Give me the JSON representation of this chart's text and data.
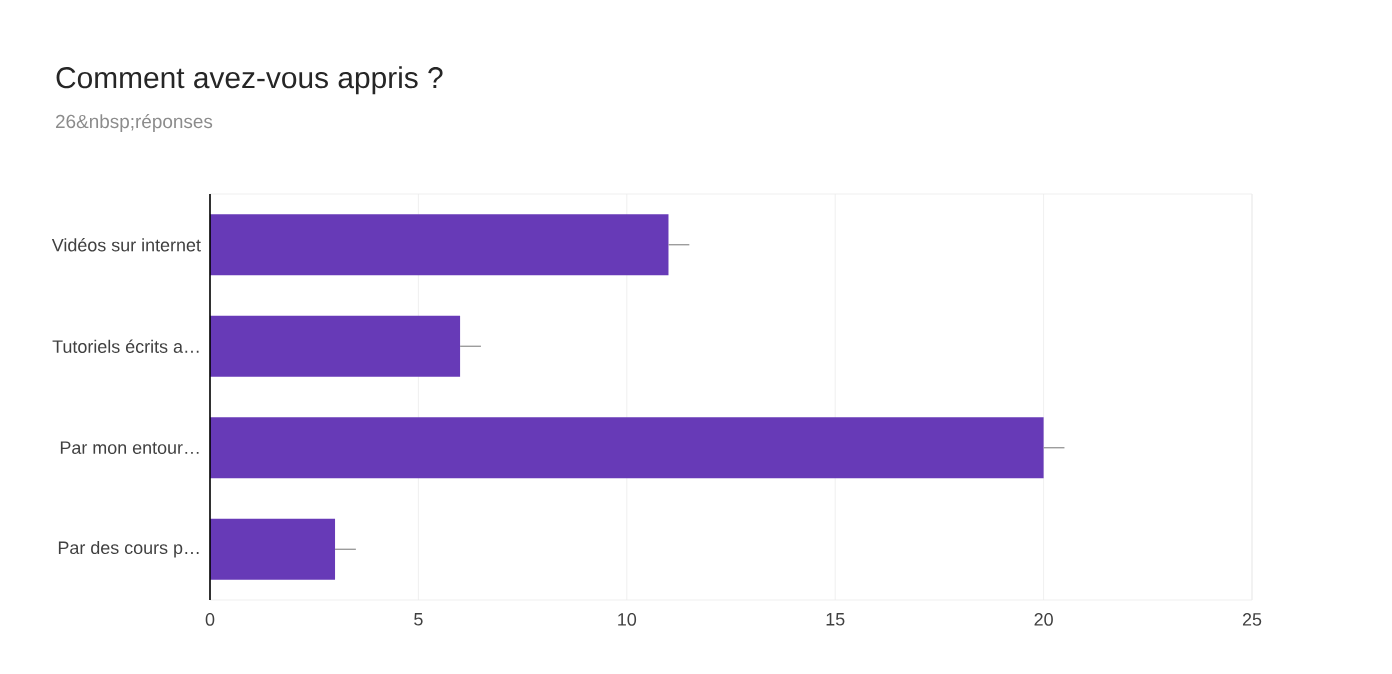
{
  "chart_data": {
    "type": "bar",
    "orientation": "horizontal",
    "title": "Comment avez-vous appris ?",
    "subtitle": "26&nbsp;réponses",
    "categories": [
      "Vidéos sur internet",
      "Tutoriels écrits a…",
      "Par mon entour…",
      "Par des cours p…"
    ],
    "values": [
      11,
      6,
      20,
      3
    ],
    "errors": [
      [
        11,
        11.5
      ],
      [
        6,
        6.5
      ],
      [
        20,
        20.5
      ],
      [
        3,
        3.5
      ]
    ],
    "color": "#673ab7",
    "xlim": [
      0,
      25
    ],
    "xticks": [
      0,
      5,
      10,
      15,
      20,
      25
    ],
    "grid": "x"
  }
}
